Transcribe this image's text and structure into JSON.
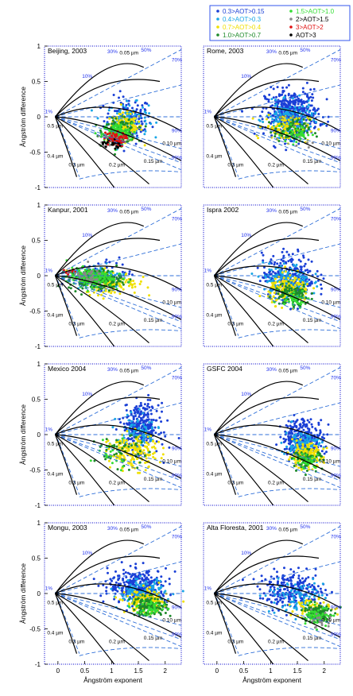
{
  "legend": {
    "entries": [
      {
        "label": "0.3>AOT>0.15",
        "color": "#1a3fd6"
      },
      {
        "label": "0.4>AOT>0.3",
        "color": "#18a6e6"
      },
      {
        "label": "0.7>AOT>0.4",
        "color": "#f0e000"
      },
      {
        "label": "1.0>AOT>0.7",
        "color": "#1d8a2a"
      },
      {
        "label": "1.5>AOT>1.0",
        "color": "#33dd33"
      },
      {
        "label": "2>AOT>1.5",
        "color": "#888888"
      },
      {
        "label": "3>AOT>2",
        "color": "#e01010"
      },
      {
        "label": "AOT>3",
        "color": "#000000"
      }
    ]
  },
  "axes": {
    "ylabel": "Ångström difference",
    "xlabel": "Ångström exponent",
    "x_ticks": [
      "0",
      "0.5",
      "1",
      "1.5",
      "2"
    ],
    "y_ticks": [
      "-1",
      "-0.5",
      "0",
      "0.5",
      "1"
    ]
  },
  "grid_labels": {
    "fraction_labels": [
      "1%",
      "10%",
      "30%",
      "50%",
      "70%",
      "90%",
      "99%"
    ],
    "radius_labels": [
      "0.05 µm",
      "0.10 µm",
      "0.15 µm",
      "0.2 µm",
      "0.3 µm",
      "0.4 µm",
      "0.5 µm"
    ]
  },
  "chart_data": [
    {
      "type": "scatter",
      "title": "Beijing, 2003",
      "xlabel": "",
      "ylabel": "Ångström difference",
      "xlim": [
        -0.25,
        2.3
      ],
      "ylim": [
        -1,
        1
      ],
      "clusters": [
        {
          "class": "0.3>AOT>0.15",
          "count": 150,
          "center": [
            1.3,
            -0.05
          ],
          "spread": [
            0.4,
            0.3
          ]
        },
        {
          "class": "0.4>AOT>0.3",
          "count": 120,
          "center": [
            1.3,
            -0.05
          ],
          "spread": [
            0.35,
            0.22
          ]
        },
        {
          "class": "0.7>AOT>0.4",
          "count": 140,
          "center": [
            1.25,
            -0.15
          ],
          "spread": [
            0.3,
            0.18
          ]
        },
        {
          "class": "1.0>AOT>0.7",
          "count": 130,
          "center": [
            1.15,
            -0.2
          ],
          "spread": [
            0.28,
            0.15
          ]
        },
        {
          "class": "1.5>AOT>1.0",
          "count": 150,
          "center": [
            1.1,
            -0.25
          ],
          "spread": [
            0.25,
            0.14
          ]
        },
        {
          "class": "2>AOT>1.5",
          "count": 60,
          "center": [
            1.05,
            -0.33
          ],
          "spread": [
            0.2,
            0.1
          ]
        },
        {
          "class": "3>AOT>2",
          "count": 55,
          "center": [
            1.05,
            -0.32
          ],
          "spread": [
            0.18,
            0.09
          ]
        },
        {
          "class": "AOT>3",
          "count": 20,
          "center": [
            1.0,
            -0.38
          ],
          "spread": [
            0.15,
            0.08
          ]
        }
      ]
    },
    {
      "type": "scatter",
      "title": "Rome, 2003",
      "xlabel": "",
      "ylabel": "",
      "xlim": [
        -0.25,
        2.3
      ],
      "ylim": [
        -1,
        1
      ],
      "clusters": [
        {
          "class": "0.3>AOT>0.15",
          "count": 420,
          "center": [
            1.4,
            0.05
          ],
          "spread": [
            0.45,
            0.3
          ]
        },
        {
          "class": "0.4>AOT>0.3",
          "count": 160,
          "center": [
            1.35,
            -0.05
          ],
          "spread": [
            0.4,
            0.22
          ]
        },
        {
          "class": "0.7>AOT>0.4",
          "count": 110,
          "center": [
            1.3,
            -0.15
          ],
          "spread": [
            0.38,
            0.18
          ]
        },
        {
          "class": "1.0>AOT>0.7",
          "count": 70,
          "center": [
            1.4,
            -0.2
          ],
          "spread": [
            0.3,
            0.14
          ]
        },
        {
          "class": "1.5>AOT>1.0",
          "count": 40,
          "center": [
            1.5,
            -0.25
          ],
          "spread": [
            0.25,
            0.12
          ]
        },
        {
          "class": "2>AOT>1.5",
          "count": 6,
          "center": [
            1.6,
            -0.35
          ],
          "spread": [
            0.15,
            0.08
          ]
        }
      ]
    },
    {
      "type": "scatter",
      "title": "Kanpur, 2001",
      "xlabel": "",
      "ylabel": "Ångström difference",
      "xlim": [
        -0.25,
        2.3
      ],
      "ylim": [
        -1,
        1
      ],
      "clusters": [
        {
          "class": "0.3>AOT>0.15",
          "count": 40,
          "center": [
            0.9,
            0.05
          ],
          "spread": [
            0.45,
            0.2
          ]
        },
        {
          "class": "0.4>AOT>0.3",
          "count": 90,
          "center": [
            0.8,
            0.0
          ],
          "spread": [
            0.45,
            0.15
          ]
        },
        {
          "class": "0.7>AOT>0.4",
          "count": 140,
          "center": [
            1.0,
            -0.1
          ],
          "spread": [
            0.45,
            0.15
          ]
        },
        {
          "class": "1.0>AOT>0.7",
          "count": 200,
          "center": [
            0.7,
            -0.05
          ],
          "spread": [
            0.45,
            0.13
          ]
        },
        {
          "class": "1.5>AOT>1.0",
          "count": 160,
          "center": [
            0.6,
            -0.02
          ],
          "spread": [
            0.4,
            0.12
          ]
        },
        {
          "class": "2>AOT>1.5",
          "count": 40,
          "center": [
            0.5,
            0.0
          ],
          "spread": [
            0.3,
            0.1
          ]
        },
        {
          "class": "3>AOT>2",
          "count": 8,
          "center": [
            0.2,
            0.02
          ],
          "spread": [
            0.15,
            0.06
          ]
        }
      ]
    },
    {
      "type": "scatter",
      "title": "Ispra 2002",
      "xlabel": "",
      "ylabel": "",
      "xlim": [
        -0.25,
        2.3
      ],
      "ylim": [
        -1,
        1
      ],
      "clusters": [
        {
          "class": "0.3>AOT>0.15",
          "count": 260,
          "center": [
            1.35,
            0.0
          ],
          "spread": [
            0.45,
            0.28
          ]
        },
        {
          "class": "0.4>AOT>0.3",
          "count": 150,
          "center": [
            1.3,
            -0.08
          ],
          "spread": [
            0.4,
            0.22
          ]
        },
        {
          "class": "0.7>AOT>0.4",
          "count": 150,
          "center": [
            1.35,
            -0.2
          ],
          "spread": [
            0.35,
            0.18
          ]
        },
        {
          "class": "1.0>AOT>0.7",
          "count": 110,
          "center": [
            1.4,
            -0.28
          ],
          "spread": [
            0.3,
            0.14
          ]
        },
        {
          "class": "1.5>AOT>1.0",
          "count": 40,
          "center": [
            1.45,
            -0.3
          ],
          "spread": [
            0.25,
            0.12
          ]
        }
      ]
    },
    {
      "type": "scatter",
      "title": "Mexico 2004",
      "xlabel": "",
      "ylabel": "Ångström difference",
      "xlim": [
        -0.25,
        2.3
      ],
      "ylim": [
        -1,
        1
      ],
      "clusters": [
        {
          "class": "0.3>AOT>0.15",
          "count": 300,
          "center": [
            1.55,
            0.1
          ],
          "spread": [
            0.3,
            0.3
          ]
        },
        {
          "class": "0.4>AOT>0.3",
          "count": 90,
          "center": [
            1.5,
            0.0
          ],
          "spread": [
            0.35,
            0.25
          ]
        },
        {
          "class": "0.7>AOT>0.4",
          "count": 170,
          "center": [
            1.4,
            -0.25
          ],
          "spread": [
            0.4,
            0.22
          ]
        },
        {
          "class": "1.0>AOT>0.7",
          "count": 50,
          "center": [
            1.2,
            -0.25
          ],
          "spread": [
            0.45,
            0.2
          ]
        },
        {
          "class": "1.5>AOT>1.0",
          "count": 20,
          "center": [
            1.0,
            -0.25
          ],
          "spread": [
            0.4,
            0.2
          ]
        }
      ]
    },
    {
      "type": "scatter",
      "title": "GSFC 2004",
      "xlabel": "",
      "ylabel": "",
      "xlim": [
        -0.25,
        2.3
      ],
      "ylim": [
        -1,
        1
      ],
      "clusters": [
        {
          "class": "0.3>AOT>0.15",
          "count": 280,
          "center": [
            1.6,
            -0.05
          ],
          "spread": [
            0.35,
            0.25
          ]
        },
        {
          "class": "0.4>AOT>0.3",
          "count": 110,
          "center": [
            1.6,
            -0.15
          ],
          "spread": [
            0.3,
            0.2
          ]
        },
        {
          "class": "0.7>AOT>0.4",
          "count": 150,
          "center": [
            1.65,
            -0.3
          ],
          "spread": [
            0.3,
            0.15
          ]
        },
        {
          "class": "1.0>AOT>0.7",
          "count": 70,
          "center": [
            1.7,
            -0.35
          ],
          "spread": [
            0.25,
            0.12
          ]
        },
        {
          "class": "1.5>AOT>1.0",
          "count": 30,
          "center": [
            1.7,
            -0.38
          ],
          "spread": [
            0.2,
            0.1
          ]
        }
      ]
    },
    {
      "type": "scatter",
      "title": "Mongu, 2003",
      "xlabel": "Ångström exponent",
      "ylabel": "Ångström difference",
      "xlim": [
        -0.25,
        2.3
      ],
      "ylim": [
        -1,
        1
      ],
      "clusters": [
        {
          "class": "0.3>AOT>0.15",
          "count": 320,
          "center": [
            1.5,
            0.1
          ],
          "spread": [
            0.5,
            0.22
          ]
        },
        {
          "class": "0.4>AOT>0.3",
          "count": 140,
          "center": [
            1.55,
            0.0
          ],
          "spread": [
            0.4,
            0.18
          ]
        },
        {
          "class": "0.7>AOT>0.4",
          "count": 160,
          "center": [
            1.65,
            -0.12
          ],
          "spread": [
            0.35,
            0.15
          ]
        },
        {
          "class": "1.0>AOT>0.7",
          "count": 120,
          "center": [
            1.7,
            -0.18
          ],
          "spread": [
            0.3,
            0.12
          ]
        },
        {
          "class": "1.5>AOT>1.0",
          "count": 40,
          "center": [
            1.75,
            -0.2
          ],
          "spread": [
            0.25,
            0.1
          ]
        }
      ]
    },
    {
      "type": "scatter",
      "title": "Alta Floresta, 2001",
      "xlabel": "Ångström exponent",
      "ylabel": "",
      "xlim": [
        -0.25,
        2.3
      ],
      "ylim": [
        -1,
        1
      ],
      "clusters": [
        {
          "class": "0.3>AOT>0.15",
          "count": 230,
          "center": [
            1.4,
            0.05
          ],
          "spread": [
            0.55,
            0.22
          ]
        },
        {
          "class": "0.4>AOT>0.3",
          "count": 90,
          "center": [
            1.45,
            -0.05
          ],
          "spread": [
            0.5,
            0.2
          ]
        },
        {
          "class": "0.7>AOT>0.4",
          "count": 80,
          "center": [
            1.8,
            -0.2
          ],
          "spread": [
            0.3,
            0.15
          ]
        },
        {
          "class": "1.0>AOT>0.7",
          "count": 110,
          "center": [
            1.85,
            -0.28
          ],
          "spread": [
            0.25,
            0.13
          ]
        },
        {
          "class": "1.5>AOT>1.0",
          "count": 70,
          "center": [
            1.9,
            -0.33
          ],
          "spread": [
            0.2,
            0.12
          ]
        },
        {
          "class": "2>AOT>1.5",
          "count": 20,
          "center": [
            1.95,
            -0.4
          ],
          "spread": [
            0.15,
            0.1
          ]
        }
      ]
    }
  ]
}
